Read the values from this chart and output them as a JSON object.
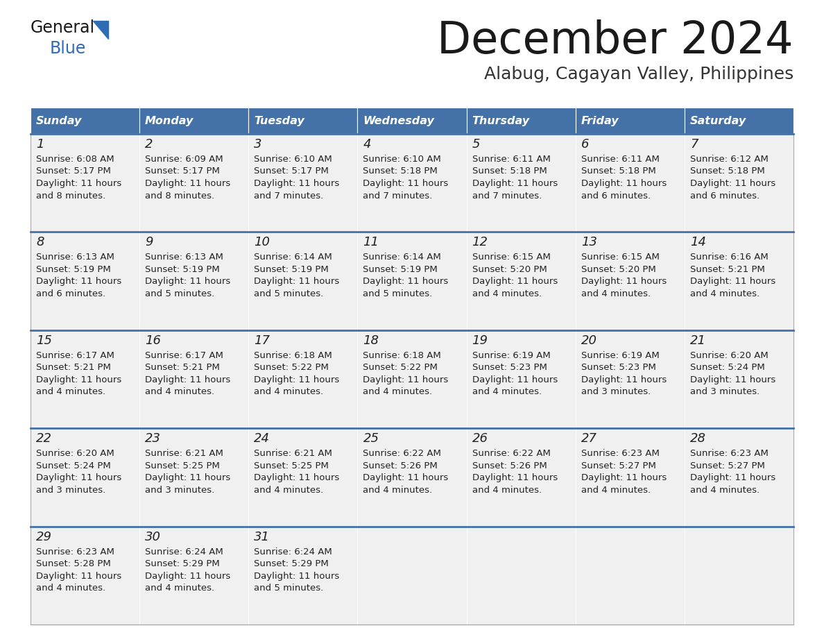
{
  "title": "December 2024",
  "subtitle": "Alabug, Cagayan Valley, Philippines",
  "days_of_week": [
    "Sunday",
    "Monday",
    "Tuesday",
    "Wednesday",
    "Thursday",
    "Friday",
    "Saturday"
  ],
  "header_bg": "#4472a8",
  "header_text": "#ffffff",
  "cell_bg": "#f0f0f0",
  "border_color": "#4472a8",
  "title_color": "#1a1a1a",
  "subtitle_color": "#333333",
  "text_color": "#222222",
  "logo_general_color": "#1a1a1a",
  "logo_blue_color": "#2e6db4",
  "logo_triangle_color": "#2e6db4",
  "calendar_data": [
    [
      {
        "day": "1",
        "sunrise": "6:08 AM",
        "sunset": "5:17 PM",
        "daylight_h": "11 hours",
        "daylight_m": "and 8 minutes."
      },
      {
        "day": "2",
        "sunrise": "6:09 AM",
        "sunset": "5:17 PM",
        "daylight_h": "11 hours",
        "daylight_m": "and 8 minutes."
      },
      {
        "day": "3",
        "sunrise": "6:10 AM",
        "sunset": "5:17 PM",
        "daylight_h": "11 hours",
        "daylight_m": "and 7 minutes."
      },
      {
        "day": "4",
        "sunrise": "6:10 AM",
        "sunset": "5:18 PM",
        "daylight_h": "11 hours",
        "daylight_m": "and 7 minutes."
      },
      {
        "day": "5",
        "sunrise": "6:11 AM",
        "sunset": "5:18 PM",
        "daylight_h": "11 hours",
        "daylight_m": "and 7 minutes."
      },
      {
        "day": "6",
        "sunrise": "6:11 AM",
        "sunset": "5:18 PM",
        "daylight_h": "11 hours",
        "daylight_m": "and 6 minutes."
      },
      {
        "day": "7",
        "sunrise": "6:12 AM",
        "sunset": "5:18 PM",
        "daylight_h": "11 hours",
        "daylight_m": "and 6 minutes."
      }
    ],
    [
      {
        "day": "8",
        "sunrise": "6:13 AM",
        "sunset": "5:19 PM",
        "daylight_h": "11 hours",
        "daylight_m": "and 6 minutes."
      },
      {
        "day": "9",
        "sunrise": "6:13 AM",
        "sunset": "5:19 PM",
        "daylight_h": "11 hours",
        "daylight_m": "and 5 minutes."
      },
      {
        "day": "10",
        "sunrise": "6:14 AM",
        "sunset": "5:19 PM",
        "daylight_h": "11 hours",
        "daylight_m": "and 5 minutes."
      },
      {
        "day": "11",
        "sunrise": "6:14 AM",
        "sunset": "5:19 PM",
        "daylight_h": "11 hours",
        "daylight_m": "and 5 minutes."
      },
      {
        "day": "12",
        "sunrise": "6:15 AM",
        "sunset": "5:20 PM",
        "daylight_h": "11 hours",
        "daylight_m": "and 4 minutes."
      },
      {
        "day": "13",
        "sunrise": "6:15 AM",
        "sunset": "5:20 PM",
        "daylight_h": "11 hours",
        "daylight_m": "and 4 minutes."
      },
      {
        "day": "14",
        "sunrise": "6:16 AM",
        "sunset": "5:21 PM",
        "daylight_h": "11 hours",
        "daylight_m": "and 4 minutes."
      }
    ],
    [
      {
        "day": "15",
        "sunrise": "6:17 AM",
        "sunset": "5:21 PM",
        "daylight_h": "11 hours",
        "daylight_m": "and 4 minutes."
      },
      {
        "day": "16",
        "sunrise": "6:17 AM",
        "sunset": "5:21 PM",
        "daylight_h": "11 hours",
        "daylight_m": "and 4 minutes."
      },
      {
        "day": "17",
        "sunrise": "6:18 AM",
        "sunset": "5:22 PM",
        "daylight_h": "11 hours",
        "daylight_m": "and 4 minutes."
      },
      {
        "day": "18",
        "sunrise": "6:18 AM",
        "sunset": "5:22 PM",
        "daylight_h": "11 hours",
        "daylight_m": "and 4 minutes."
      },
      {
        "day": "19",
        "sunrise": "6:19 AM",
        "sunset": "5:23 PM",
        "daylight_h": "11 hours",
        "daylight_m": "and 4 minutes."
      },
      {
        "day": "20",
        "sunrise": "6:19 AM",
        "sunset": "5:23 PM",
        "daylight_h": "11 hours",
        "daylight_m": "and 3 minutes."
      },
      {
        "day": "21",
        "sunrise": "6:20 AM",
        "sunset": "5:24 PM",
        "daylight_h": "11 hours",
        "daylight_m": "and 3 minutes."
      }
    ],
    [
      {
        "day": "22",
        "sunrise": "6:20 AM",
        "sunset": "5:24 PM",
        "daylight_h": "11 hours",
        "daylight_m": "and 3 minutes."
      },
      {
        "day": "23",
        "sunrise": "6:21 AM",
        "sunset": "5:25 PM",
        "daylight_h": "11 hours",
        "daylight_m": "and 3 minutes."
      },
      {
        "day": "24",
        "sunrise": "6:21 AM",
        "sunset": "5:25 PM",
        "daylight_h": "11 hours",
        "daylight_m": "and 4 minutes."
      },
      {
        "day": "25",
        "sunrise": "6:22 AM",
        "sunset": "5:26 PM",
        "daylight_h": "11 hours",
        "daylight_m": "and 4 minutes."
      },
      {
        "day": "26",
        "sunrise": "6:22 AM",
        "sunset": "5:26 PM",
        "daylight_h": "11 hours",
        "daylight_m": "and 4 minutes."
      },
      {
        "day": "27",
        "sunrise": "6:23 AM",
        "sunset": "5:27 PM",
        "daylight_h": "11 hours",
        "daylight_m": "and 4 minutes."
      },
      {
        "day": "28",
        "sunrise": "6:23 AM",
        "sunset": "5:27 PM",
        "daylight_h": "11 hours",
        "daylight_m": "and 4 minutes."
      }
    ],
    [
      {
        "day": "29",
        "sunrise": "6:23 AM",
        "sunset": "5:28 PM",
        "daylight_h": "11 hours",
        "daylight_m": "and 4 minutes."
      },
      {
        "day": "30",
        "sunrise": "6:24 AM",
        "sunset": "5:29 PM",
        "daylight_h": "11 hours",
        "daylight_m": "and 4 minutes."
      },
      {
        "day": "31",
        "sunrise": "6:24 AM",
        "sunset": "5:29 PM",
        "daylight_h": "11 hours",
        "daylight_m": "and 5 minutes."
      },
      null,
      null,
      null,
      null
    ]
  ]
}
